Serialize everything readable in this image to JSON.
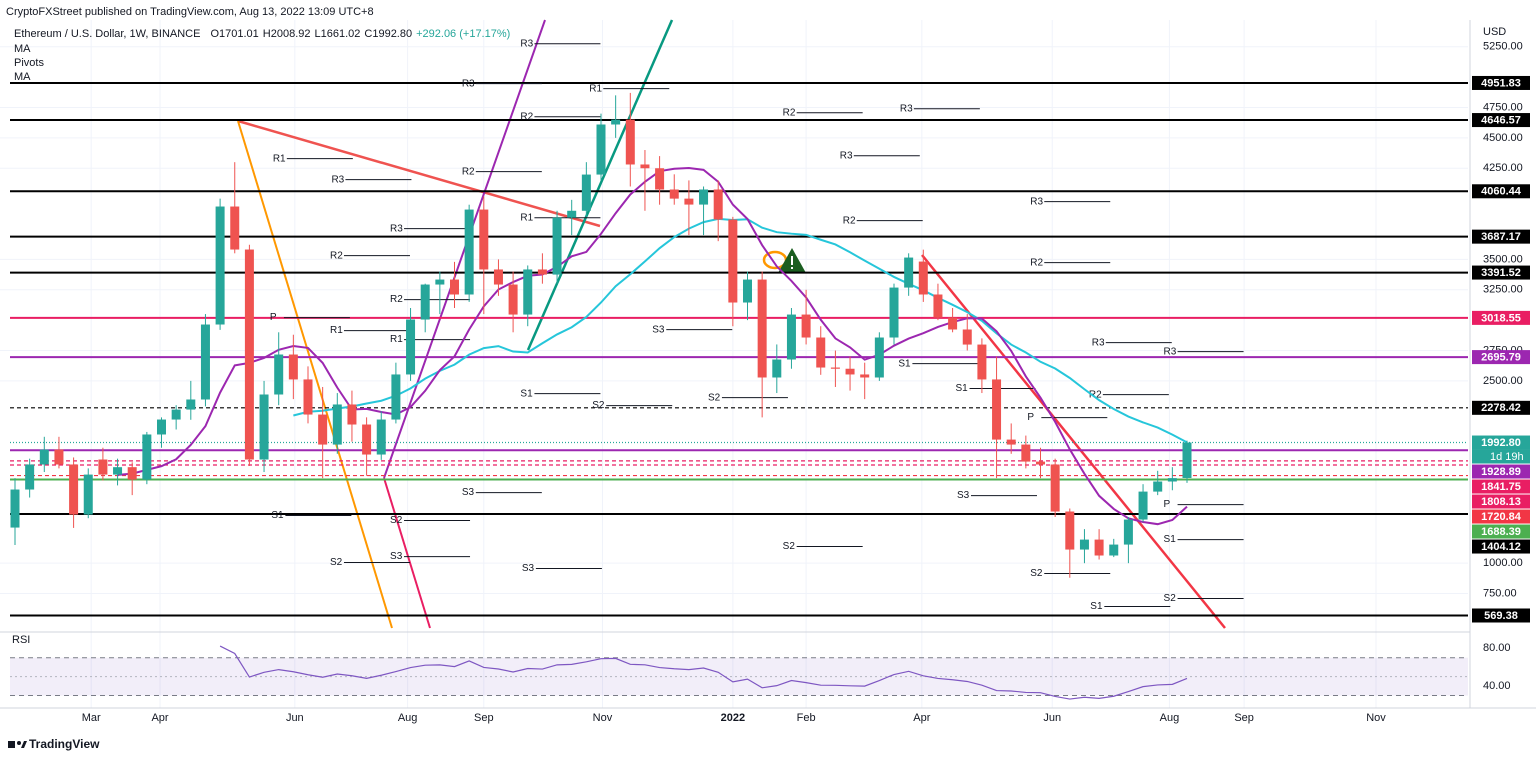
{
  "chart_data": {
    "type": "candlestick",
    "published": "CryptoFXStreet published on TradingView.com, Aug 13, 2022 13:09 UTC+8",
    "title": "Ethereum / U.S. Dollar, 1W, BINANCE",
    "ohlc_text": [
      "O1701.01",
      "H2008.92",
      "L1661.02",
      "C1992.80",
      "+292.06 (+17.17%)"
    ],
    "indicators": [
      "MA",
      "Pivots",
      "MA"
    ],
    "currency": "USD",
    "brand": "TradingView",
    "up_color": "#26a69a",
    "down_color": "#ef5350",
    "categories": [
      null,
      null,
      null,
      null,
      null,
      null,
      null,
      null,
      null,
      null,
      null,
      null,
      null,
      null,
      null,
      null,
      null,
      null,
      null,
      null,
      null,
      null,
      null,
      null,
      null,
      null,
      null,
      null,
      null,
      null,
      null,
      null,
      null,
      null,
      null,
      null,
      null,
      null,
      null,
      null,
      null,
      null,
      null,
      null,
      null,
      null,
      null,
      null,
      null,
      null,
      null,
      null,
      null,
      null,
      null,
      null,
      null,
      null,
      null,
      null,
      null,
      null,
      null,
      null,
      null,
      null,
      null,
      null,
      null,
      null,
      null,
      null,
      null,
      null,
      null,
      null,
      null,
      null,
      null,
      null,
      null
    ],
    "open": [
      1293,
      1606,
      1812,
      1935,
      1812,
      1400,
      1853,
      1729,
      1790,
      1688,
      2059,
      2182,
      2264,
      2347,
      2964,
      3935,
      3581,
      1853,
      2388,
      2717,
      2512,
      2223,
      1976,
      2306,
      2141,
      1894,
      2182,
      2553,
      3005,
      3293,
      3334,
      3211,
      3910,
      3417,
      3293,
      3046,
      3417,
      3375,
      3844,
      3900,
      4198,
      4610,
      4650,
      4281,
      4250,
      4075,
      4000,
      3951,
      4075,
      3828,
      3145,
      3334,
      2528,
      2676,
      3046,
      2857,
      2610,
      2600,
      2553,
      2528,
      2857,
      3268,
      3482,
      3211,
      3021,
      2923,
      2799,
      2512,
      2017,
      1976,
      1836,
      1812,
      1425,
      1112,
      1194,
      1063,
      1153,
      1359,
      1589,
      1672,
      1701.01
    ],
    "high": [
      1700,
      1860,
      2040,
      2040,
      1870,
      1780,
      1950,
      1860,
      1830,
      2080,
      2200,
      2300,
      2500,
      3050,
      4000,
      4300,
      3620,
      2500,
      2900,
      2880,
      2620,
      2450,
      2400,
      2420,
      2200,
      2250,
      2650,
      3100,
      3300,
      3400,
      3480,
      3950,
      4020,
      3500,
      3400,
      3450,
      3550,
      3900,
      3990,
      4300,
      4700,
      4850,
      4870,
      4400,
      4350,
      4200,
      4150,
      4100,
      4150,
      3850,
      3400,
      3400,
      2800,
      3100,
      3250,
      2950,
      2750,
      2700,
      2650,
      2900,
      3300,
      3550,
      3580,
      3300,
      3100,
      3050,
      2850,
      2700,
      2150,
      2050,
      1950,
      1860,
      1450,
      1280,
      1280,
      1200,
      1380,
      1650,
      1760,
      1790,
      2008.92
    ],
    "low": [
      1150,
      1540,
      1750,
      1780,
      1290,
      1370,
      1680,
      1640,
      1560,
      1650,
      1950,
      2100,
      2180,
      2290,
      2920,
      3550,
      1800,
      1750,
      2300,
      2350,
      2150,
      1700,
      1900,
      2000,
      1720,
      1850,
      2150,
      2500,
      2900,
      3050,
      3100,
      3150,
      3050,
      3200,
      2900,
      2950,
      3300,
      3300,
      3700,
      3850,
      4150,
      4500,
      4100,
      3900,
      3950,
      3950,
      3700,
      3700,
      3650,
      2950,
      3000,
      2200,
      2400,
      2600,
      2800,
      2550,
      2450,
      2420,
      2350,
      2500,
      2800,
      3200,
      3150,
      3000,
      2900,
      2750,
      2400,
      1700,
      1900,
      1780,
      1700,
      1380,
      880,
      1000,
      1030,
      1050,
      1000,
      1340,
      1560,
      1600,
      1661.02
    ],
    "close": [
      1606,
      1812,
      1935,
      1812,
      1400,
      1729,
      1729,
      1790,
      1688,
      2059,
      2182,
      2264,
      2347,
      2964,
      3935,
      3581,
      1853,
      2388,
      2717,
      2512,
      2223,
      1976,
      2306,
      2141,
      1894,
      2182,
      2553,
      3005,
      3293,
      3334,
      3211,
      3910,
      3417,
      3293,
      3046,
      3417,
      3375,
      3844,
      3900,
      4198,
      4610,
      4650,
      4281,
      4250,
      4075,
      4000,
      3951,
      4075,
      3828,
      3145,
      3334,
      2528,
      2676,
      3046,
      2857,
      2610,
      2600,
      2553,
      2528,
      2857,
      3268,
      3515,
      3211,
      3021,
      2923,
      2799,
      2512,
      2017,
      1976,
      1836,
      1812,
      1425,
      1112,
      1194,
      1063,
      1153,
      1359,
      1589,
      1672,
      1700,
      1992.8
    ],
    "ylim": [
      450,
      5470
    ],
    "yticks": [
      {
        "value": 5250,
        "label": "5250.00"
      },
      {
        "value": 4750,
        "label": "4750.00"
      },
      {
        "value": 4500,
        "label": "4500.00"
      },
      {
        "value": 4250,
        "label": "4250.00"
      },
      {
        "value": 3500,
        "label": "3500.00"
      },
      {
        "value": 3250,
        "label": "3250.00"
      },
      {
        "value": 2750,
        "label": "2750.00"
      },
      {
        "value": 2500,
        "label": "2500.00"
      },
      {
        "value": 1000,
        "label": "1000.00"
      },
      {
        "value": 750,
        "label": "750.00"
      }
    ],
    "xticks": [
      {
        "value": 5.2,
        "label": "Mar"
      },
      {
        "value": 9.9,
        "label": "Apr"
      },
      {
        "value": 19.1,
        "label": "Jun"
      },
      {
        "value": 26.8,
        "label": "Aug"
      },
      {
        "value": 32,
        "label": "Sep"
      },
      {
        "value": 40.1,
        "label": "Nov"
      },
      {
        "value": 49,
        "label": "2022"
      },
      {
        "value": 54,
        "label": "Feb"
      },
      {
        "value": 61.9,
        "label": "Apr"
      },
      {
        "value": 70.8,
        "label": "Jun"
      },
      {
        "value": 78.8,
        "label": "Aug"
      },
      {
        "value": 83.9,
        "label": "Sep"
      },
      {
        "value": 92.9,
        "label": "Nov"
      }
    ],
    "levels": [
      {
        "value": 4951.83,
        "color": "#000000",
        "style": "solid"
      },
      {
        "value": 4646.57,
        "color": "#000000",
        "style": "solid"
      },
      {
        "value": 4060.44,
        "color": "#000000",
        "style": "solid"
      },
      {
        "value": 3687.17,
        "color": "#000000",
        "style": "solid"
      },
      {
        "value": 3391.52,
        "color": "#000000",
        "style": "solid"
      },
      {
        "value": 3018.55,
        "color": "#e91e63",
        "style": "solid"
      },
      {
        "value": 2695.79,
        "color": "#9c27b0",
        "style": "solid"
      },
      {
        "value": 2278.42,
        "color": "#000000",
        "style": "dashed"
      },
      {
        "value": 1992.8,
        "label": "1992.80",
        "color": "#26a69a",
        "style": "dotted",
        "countdown": "1d 19h"
      },
      {
        "value": 1928.89,
        "color": "#9c27b0",
        "style": "solid"
      },
      {
        "value": 1841.75,
        "color": "#e91e63",
        "style": "dashed"
      },
      {
        "value": 1808.13,
        "color": "#e91e63",
        "style": "dashed"
      },
      {
        "value": 1720.84,
        "color": "#f23645",
        "style": "dashed"
      },
      {
        "value": 1688.39,
        "color": "#4caf50",
        "style": "solid"
      },
      {
        "value": 1404.12,
        "color": "#000000",
        "style": "solid"
      },
      {
        "value": 569.38,
        "color": "#000000",
        "style": "solid"
      }
    ],
    "pivots": [
      {
        "label": "R3",
        "value": 5275,
        "at": 34.5
      },
      {
        "label": "R2",
        "value": 4674,
        "at": 34.5
      },
      {
        "label": "R1",
        "value": 4905,
        "at": 39.2
      },
      {
        "label": "R3",
        "value": 4946,
        "at": 30.5
      },
      {
        "label": "R1",
        "value": 4329,
        "at": 17.6
      },
      {
        "label": "R3",
        "value": 4156,
        "at": 21.6
      },
      {
        "label": "R2",
        "value": 4222,
        "at": 30.5
      },
      {
        "label": "R1",
        "value": 3843,
        "at": 34.5
      },
      {
        "label": "R3",
        "value": 3753,
        "at": 25.6
      },
      {
        "label": "R2",
        "value": 3531,
        "at": 21.5
      },
      {
        "label": "R2",
        "value": 3169,
        "at": 25.6
      },
      {
        "label": "R1",
        "value": 2914,
        "at": 21.5
      },
      {
        "label": "R1",
        "value": 2840,
        "at": 25.6
      },
      {
        "label": "P",
        "value": 3021,
        "at": 17.4
      },
      {
        "label": "S1",
        "value": 2395,
        "at": 34.5
      },
      {
        "label": "S2",
        "value": 2297,
        "at": 39.4
      },
      {
        "label": "S3",
        "value": 2922,
        "at": 43.5
      },
      {
        "label": "S2",
        "value": 2362,
        "at": 47.3
      },
      {
        "label": "S2",
        "value": 1137,
        "at": 52.4
      },
      {
        "label": "R2",
        "value": 4707,
        "at": 52.4
      },
      {
        "label": "R3",
        "value": 4740,
        "at": 60.4
      },
      {
        "label": "R3",
        "value": 4353,
        "at": 56.3
      },
      {
        "label": "R2",
        "value": 3819,
        "at": 56.5
      },
      {
        "label": "R2",
        "value": 3473,
        "at": 69.3
      },
      {
        "label": "R3",
        "value": 3975,
        "at": 69.3
      },
      {
        "label": "R3",
        "value": 2815,
        "at": 73.5
      },
      {
        "label": "R3",
        "value": 2741,
        "at": 78.4
      },
      {
        "label": "R2",
        "value": 2387,
        "at": 73.3
      },
      {
        "label": "P",
        "value": 2198,
        "at": 69.1
      },
      {
        "label": "S1",
        "value": 643,
        "at": 73.4
      },
      {
        "label": "S2",
        "value": 709,
        "at": 78.4
      },
      {
        "label": "S1",
        "value": 1194,
        "at": 78.4
      },
      {
        "label": "P",
        "value": 1482,
        "at": 78.4
      },
      {
        "label": "S2",
        "value": 915,
        "at": 69.3
      },
      {
        "label": "S3",
        "value": 1556,
        "at": 64.3
      },
      {
        "label": "S1",
        "value": 2437,
        "at": 64.2
      },
      {
        "label": "S1",
        "value": 2642,
        "at": 60.3
      },
      {
        "label": "S3",
        "value": 956,
        "at": 34.6
      },
      {
        "label": "S3",
        "value": 1054,
        "at": 25.6
      },
      {
        "label": "S2",
        "value": 1005,
        "at": 21.5
      },
      {
        "label": "S2",
        "value": 1351,
        "at": 25.6
      },
      {
        "label": "S1",
        "value": 1392,
        "at": 17.5
      },
      {
        "label": "S3",
        "value": 1581,
        "at": 30.5
      }
    ],
    "rsi": {
      "name": "RSI",
      "ylim": [
        20,
        94
      ],
      "yticks": [
        {
          "value": 80,
          "label": "80.00"
        },
        {
          "value": 40,
          "label": "40.00"
        }
      ],
      "band": [
        30,
        70
      ],
      "midline": 50,
      "color": "#7e57c2"
    }
  }
}
